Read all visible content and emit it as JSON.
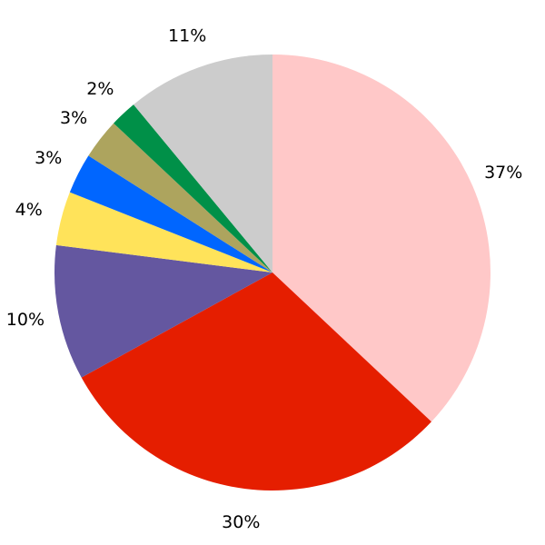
{
  "chart_data": {
    "type": "pie",
    "values": [
      37,
      30,
      10,
      4,
      3,
      3,
      2,
      11
    ],
    "value_labels": [
      "37%",
      "30%",
      "10%",
      "4%",
      "3%",
      "3%",
      "2%",
      "11%"
    ],
    "colors": [
      "#ffc8c8",
      "#e51e00",
      "#6457a0",
      "#ffe35a",
      "#0066ff",
      "#ada45e",
      "#009048",
      "#cccccc"
    ],
    "start_angle": 90,
    "clockwise": true
  }
}
